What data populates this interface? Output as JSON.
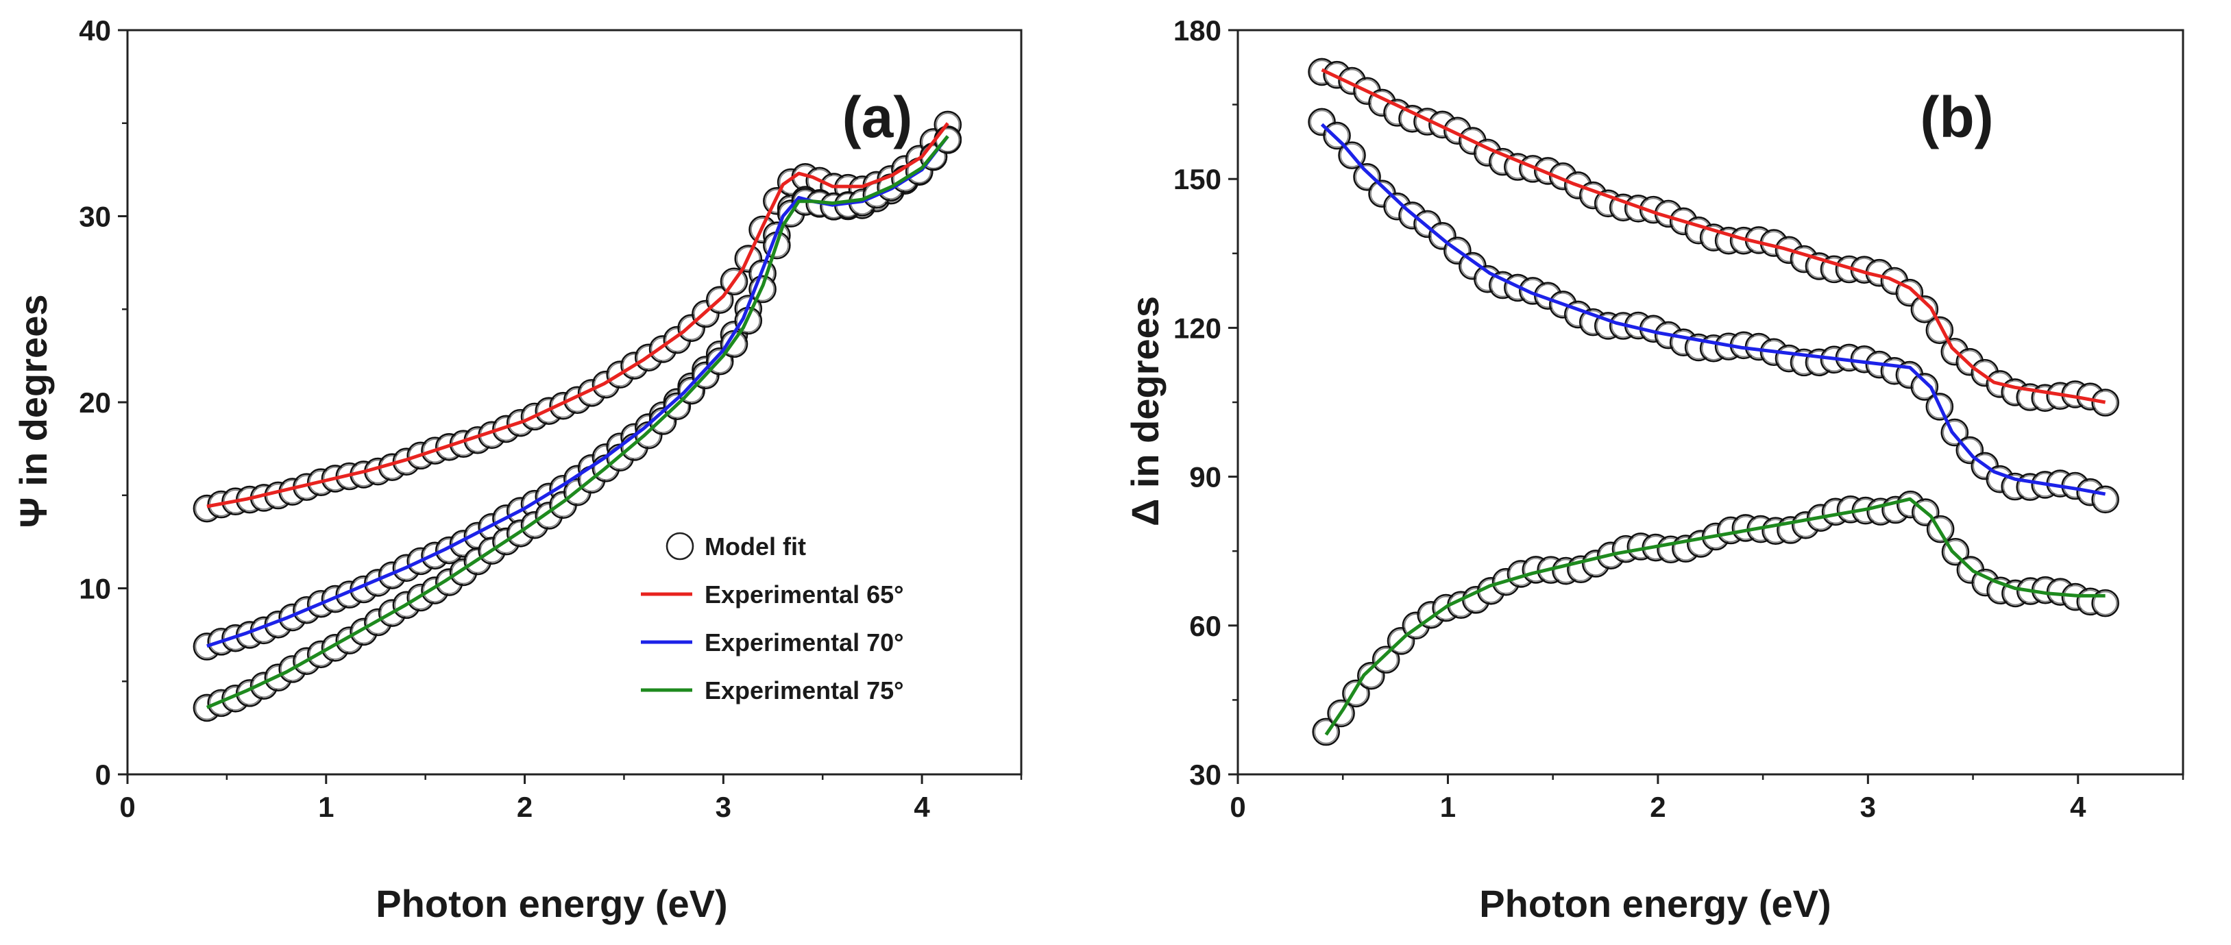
{
  "chart_data": [
    {
      "type": "scatter",
      "panel_label": "(a)",
      "xlabel": "Photon energy (eV)",
      "ylabel": "Ψ in degrees",
      "xlim": [
        0,
        4.5
      ],
      "ylim": [
        0,
        40
      ],
      "xticks": [
        0,
        1,
        2,
        3,
        4
      ],
      "yticks": [
        0,
        10,
        20,
        30,
        40
      ],
      "legend": {
        "position": "bottom-right",
        "entries": [
          "Model fit",
          "Experimental 65°",
          "Experimental 70°",
          "Experimental 75°"
        ]
      },
      "series": [
        {
          "name": "Experimental 65°",
          "color": "#e8231f",
          "fit_name": "Model fit",
          "points": [
            [
              0.4,
              14.4
            ],
            [
              0.6,
              14.8
            ],
            [
              0.8,
              15.3
            ],
            [
              1.0,
              15.8
            ],
            [
              1.2,
              16.3
            ],
            [
              1.4,
              16.9
            ],
            [
              1.6,
              17.6
            ],
            [
              1.8,
              18.3
            ],
            [
              2.0,
              19.0
            ],
            [
              2.2,
              20.0
            ],
            [
              2.4,
              21.0
            ],
            [
              2.6,
              22.3
            ],
            [
              2.8,
              23.8
            ],
            [
              3.0,
              25.7
            ],
            [
              3.1,
              27.2
            ],
            [
              3.2,
              29.5
            ],
            [
              3.3,
              31.7
            ],
            [
              3.38,
              32.3
            ],
            [
              3.45,
              32.1
            ],
            [
              3.55,
              31.6
            ],
            [
              3.7,
              31.6
            ],
            [
              3.85,
              32.2
            ],
            [
              4.0,
              33.2
            ],
            [
              4.13,
              35.0
            ]
          ]
        },
        {
          "name": "Experimental 70°",
          "color": "#1c22e8",
          "fit_name": "Model fit",
          "points": [
            [
              0.4,
              6.9
            ],
            [
              0.6,
              7.6
            ],
            [
              0.8,
              8.4
            ],
            [
              1.0,
              9.3
            ],
            [
              1.2,
              10.2
            ],
            [
              1.4,
              11.1
            ],
            [
              1.6,
              12.1
            ],
            [
              1.8,
              13.2
            ],
            [
              2.0,
              14.3
            ],
            [
              2.2,
              15.6
            ],
            [
              2.4,
              17.0
            ],
            [
              2.6,
              18.6
            ],
            [
              2.8,
              20.5
            ],
            [
              3.0,
              22.8
            ],
            [
              3.1,
              24.5
            ],
            [
              3.2,
              27.2
            ],
            [
              3.3,
              30.0
            ],
            [
              3.38,
              31.0
            ],
            [
              3.45,
              30.8
            ],
            [
              3.55,
              30.6
            ],
            [
              3.7,
              30.8
            ],
            [
              3.85,
              31.5
            ],
            [
              4.0,
              32.5
            ],
            [
              4.13,
              34.3
            ]
          ]
        },
        {
          "name": "Experimental 75°",
          "color": "#1e8a1e",
          "fit_name": "Model fit",
          "points": [
            [
              0.4,
              3.6
            ],
            [
              0.6,
              4.5
            ],
            [
              0.8,
              5.5
            ],
            [
              1.0,
              6.7
            ],
            [
              1.2,
              7.9
            ],
            [
              1.4,
              9.1
            ],
            [
              1.6,
              10.4
            ],
            [
              1.8,
              11.8
            ],
            [
              2.0,
              13.2
            ],
            [
              2.2,
              14.7
            ],
            [
              2.4,
              16.4
            ],
            [
              2.6,
              18.2
            ],
            [
              2.8,
              20.2
            ],
            [
              3.0,
              22.5
            ],
            [
              3.1,
              24.0
            ],
            [
              3.2,
              26.3
            ],
            [
              3.3,
              29.5
            ],
            [
              3.38,
              30.8
            ],
            [
              3.45,
              30.8
            ],
            [
              3.55,
              30.7
            ],
            [
              3.7,
              30.9
            ],
            [
              3.85,
              31.6
            ],
            [
              4.0,
              32.6
            ],
            [
              4.13,
              34.3
            ]
          ]
        }
      ]
    },
    {
      "type": "scatter",
      "panel_label": "(b)",
      "xlabel": "Photon energy (eV)",
      "ylabel": "Δ in degrees",
      "xlim": [
        0,
        4.5
      ],
      "ylim": [
        30,
        180
      ],
      "xticks": [
        0,
        1,
        2,
        3,
        4
      ],
      "yticks": [
        30,
        60,
        90,
        120,
        150,
        180
      ],
      "series": [
        {
          "name": "Experimental 65°",
          "color": "#e8231f",
          "fit_name": "Model fit",
          "points": [
            [
              0.4,
              172
            ],
            [
              0.6,
              168
            ],
            [
              0.8,
              164
            ],
            [
              1.0,
              160
            ],
            [
              1.2,
              156
            ],
            [
              1.4,
              152.5
            ],
            [
              1.6,
              149
            ],
            [
              1.8,
              146
            ],
            [
              2.0,
              143
            ],
            [
              2.2,
              140.5
            ],
            [
              2.4,
              138
            ],
            [
              2.6,
              136
            ],
            [
              2.8,
              133.5
            ],
            [
              3.0,
              131
            ],
            [
              3.1,
              130
            ],
            [
              3.2,
              128
            ],
            [
              3.3,
              124
            ],
            [
              3.4,
              116
            ],
            [
              3.5,
              112
            ],
            [
              3.6,
              109
            ],
            [
              3.7,
              108
            ],
            [
              3.85,
              107
            ],
            [
              4.0,
              106
            ],
            [
              4.13,
              105
            ]
          ]
        },
        {
          "name": "Experimental 70°",
          "color": "#1c22e8",
          "fit_name": "Model fit",
          "points": [
            [
              0.4,
              161
            ],
            [
              0.5,
              157
            ],
            [
              0.6,
              152
            ],
            [
              0.8,
              144
            ],
            [
              1.0,
              137
            ],
            [
              1.2,
              131
            ],
            [
              1.4,
              127
            ],
            [
              1.6,
              124
            ],
            [
              1.8,
              121
            ],
            [
              2.0,
              119
            ],
            [
              2.2,
              117.5
            ],
            [
              2.4,
              116
            ],
            [
              2.6,
              115
            ],
            [
              2.8,
              114
            ],
            [
              3.0,
              113
            ],
            [
              3.1,
              112.5
            ],
            [
              3.2,
              112
            ],
            [
              3.3,
              108
            ],
            [
              3.4,
              99
            ],
            [
              3.5,
              94
            ],
            [
              3.6,
              91
            ],
            [
              3.7,
              89.5
            ],
            [
              3.85,
              88.5
            ],
            [
              4.0,
              87.5
            ],
            [
              4.13,
              86.5
            ]
          ]
        },
        {
          "name": "Experimental 75°",
          "color": "#1e8a1e",
          "fit_name": "Model fit",
          "points": [
            [
              0.42,
              38
            ],
            [
              0.5,
              43
            ],
            [
              0.6,
              50
            ],
            [
              0.8,
              58
            ],
            [
              1.0,
              64
            ],
            [
              1.2,
              68
            ],
            [
              1.4,
              70.5
            ],
            [
              1.6,
              72.5
            ],
            [
              1.8,
              74.5
            ],
            [
              2.0,
              76
            ],
            [
              2.2,
              77.5
            ],
            [
              2.4,
              79
            ],
            [
              2.6,
              80.5
            ],
            [
              2.8,
              82
            ],
            [
              3.0,
              83.5
            ],
            [
              3.1,
              84.5
            ],
            [
              3.2,
              85.5
            ],
            [
              3.3,
              82
            ],
            [
              3.4,
              75
            ],
            [
              3.5,
              71
            ],
            [
              3.6,
              69
            ],
            [
              3.7,
              67.5
            ],
            [
              3.85,
              66.5
            ],
            [
              4.0,
              66
            ],
            [
              4.13,
              66
            ]
          ]
        }
      ]
    }
  ]
}
